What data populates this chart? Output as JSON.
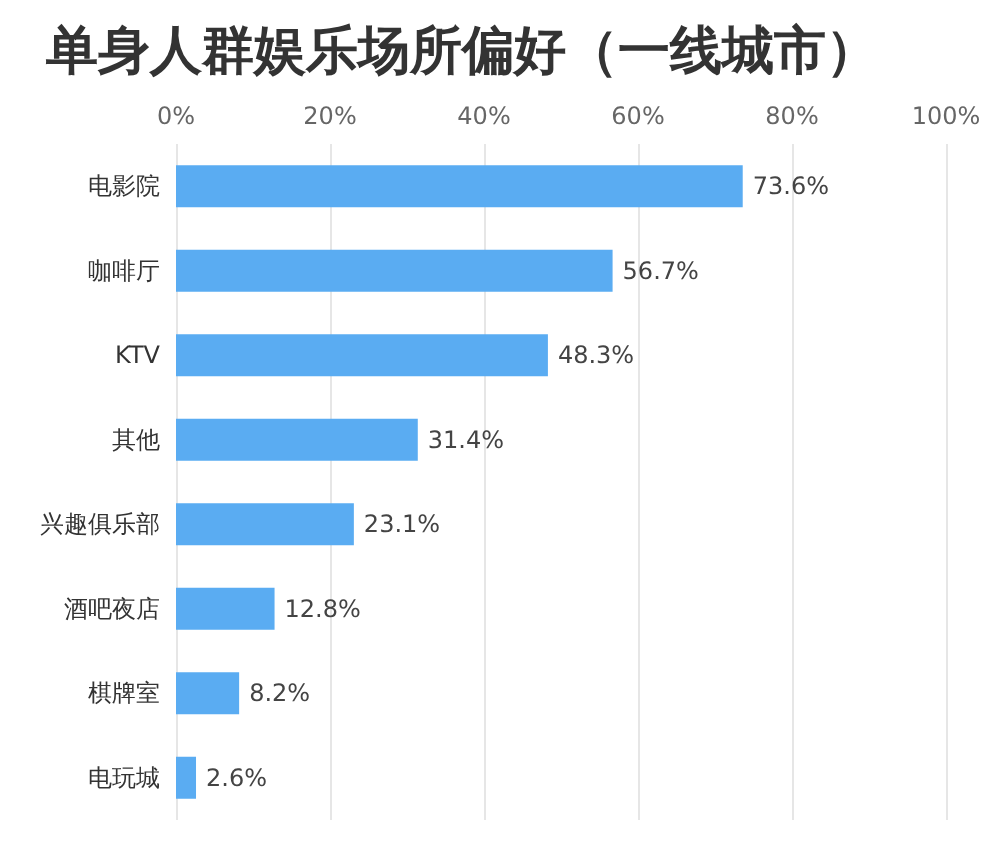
{
  "chart_data": {
    "type": "bar",
    "orientation": "horizontal",
    "title": "单身人群娱乐场所偏好（一线城市）",
    "categories": [
      "电影院",
      "咖啡厅",
      "KTV",
      "其他",
      "兴趣俱乐部",
      "酒吧夜店",
      "棋牌室",
      "电玩城"
    ],
    "values": [
      73.6,
      56.7,
      48.3,
      31.4,
      23.1,
      12.8,
      8.2,
      2.6
    ],
    "value_labels": [
      "73.6%",
      "56.7%",
      "48.3%",
      "31.4%",
      "23.1%",
      "12.8%",
      "8.2%",
      "2.6%"
    ],
    "color": "#5aacf2",
    "xlim": [
      0,
      100
    ],
    "xticks": [
      {
        "value": 0,
        "label": "0%"
      },
      {
        "value": 20,
        "label": "20%"
      },
      {
        "value": 40,
        "label": "40%"
      },
      {
        "value": 60,
        "label": "60%"
      },
      {
        "value": 80,
        "label": "80%"
      },
      {
        "value": 100,
        "label": "100%"
      }
    ],
    "grid": "x"
  }
}
